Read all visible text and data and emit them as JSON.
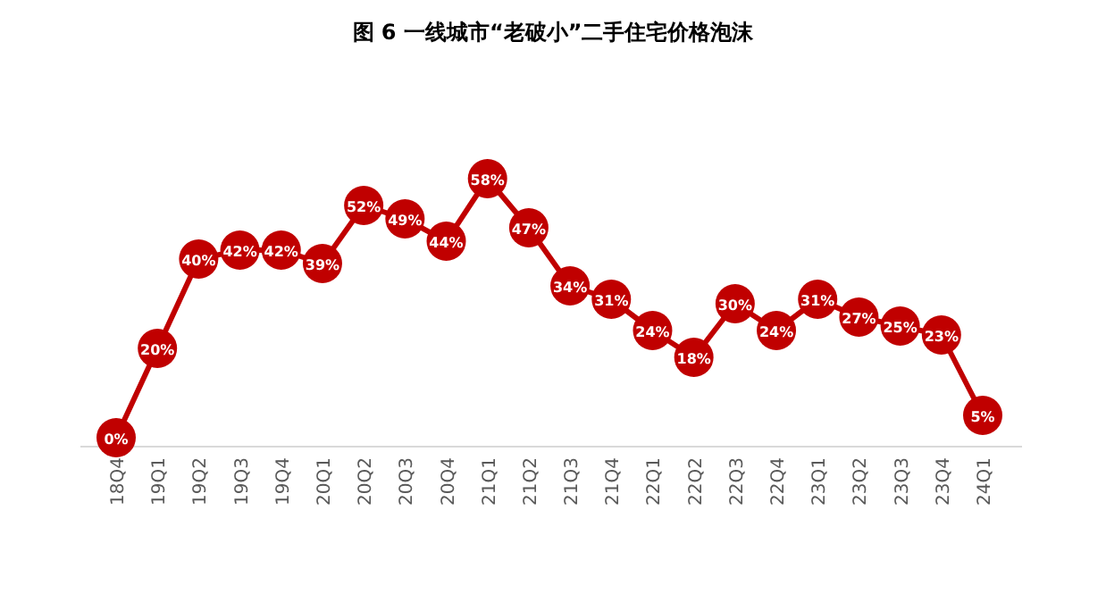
{
  "chart_data": {
    "type": "line",
    "title": "图 6   一线城市“老破小”二手住宅价格泡沫",
    "categories": [
      "18Q4",
      "19Q1",
      "19Q2",
      "19Q3",
      "19Q4",
      "20Q1",
      "20Q2",
      "20Q3",
      "20Q4",
      "21Q1",
      "21Q2",
      "21Q3",
      "21Q4",
      "22Q1",
      "22Q2",
      "22Q3",
      "22Q4",
      "23Q1",
      "23Q2",
      "23Q3",
      "23Q4",
      "24Q1"
    ],
    "series": [
      {
        "color": "#c00000",
        "values": [
          0,
          20,
          40,
          42,
          42,
          39,
          52,
          49,
          44,
          58,
          47,
          34,
          31,
          24,
          18,
          30,
          24,
          31,
          27,
          25,
          23,
          5
        ],
        "value_labels": [
          "0%",
          "20%",
          "40%",
          "42%",
          "42%",
          "39%",
          "52%",
          "49%",
          "44%",
          "58%",
          "47%",
          "34%",
          "31%",
          "24%",
          "18%",
          "30%",
          "24%",
          "31%",
          "27%",
          "25%",
          "23%",
          "5%"
        ]
      }
    ],
    "marker": "circle",
    "line_style": "solid"
  }
}
